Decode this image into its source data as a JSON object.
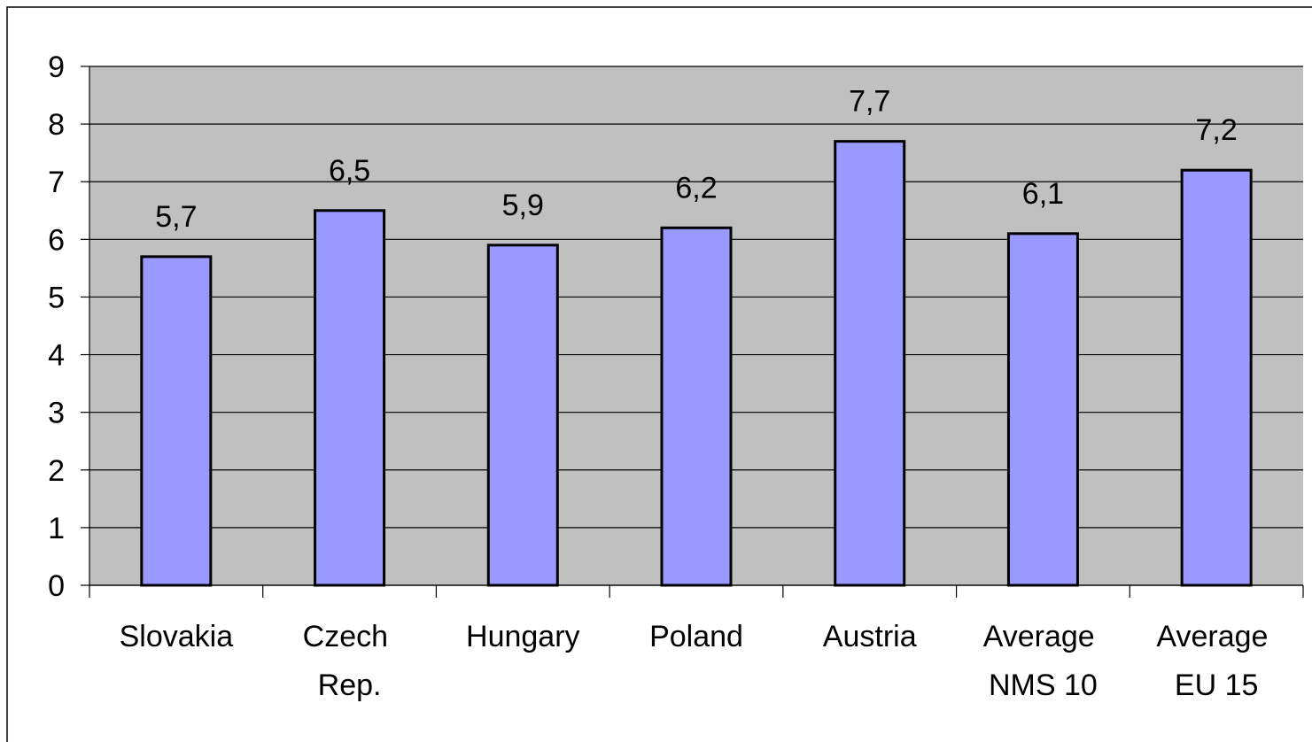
{
  "chart_data": {
    "type": "bar",
    "categories": [
      "Slovakia",
      "Czech Rep.",
      "Hungary",
      "Poland",
      "Austria",
      "Average NMS 10",
      "Average EU 15"
    ],
    "values": [
      5.7,
      6.5,
      5.9,
      6.2,
      7.7,
      6.1,
      7.2
    ],
    "value_labels": [
      "5,7",
      "6,5",
      "5,9",
      "6,2",
      "7,7",
      "6,1",
      "7,2"
    ],
    "color": "#9999ff",
    "ylim": [
      0,
      9
    ],
    "yticks": [
      0,
      1,
      2,
      3,
      4,
      5,
      6,
      7,
      8,
      9
    ],
    "grid": true
  }
}
